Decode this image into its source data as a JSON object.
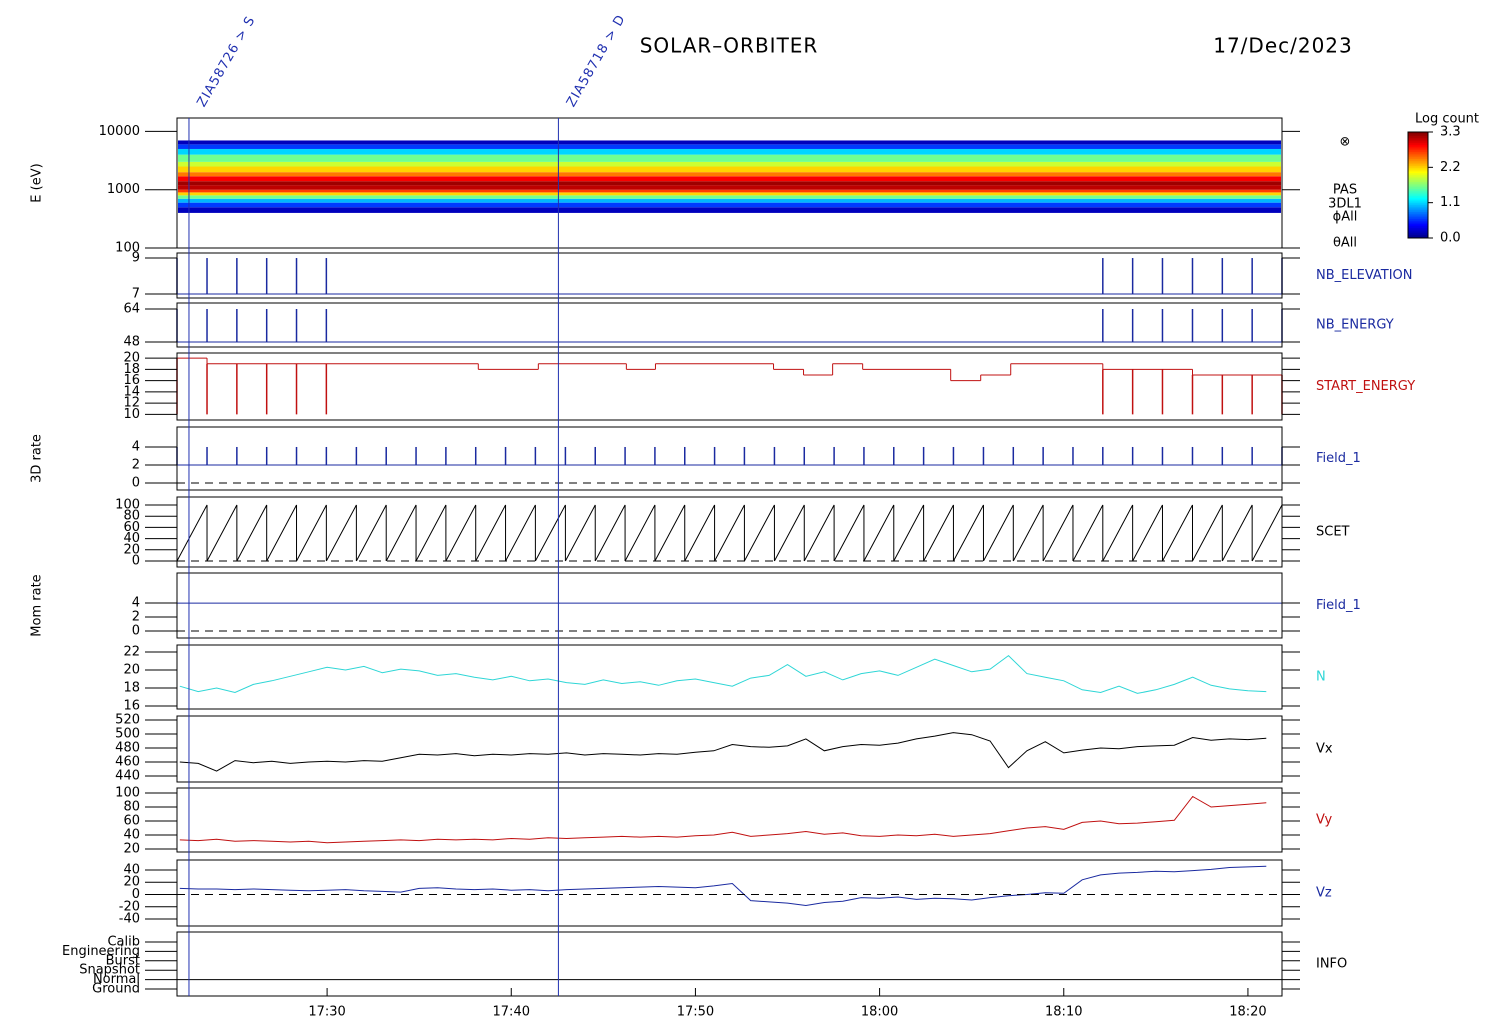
{
  "header": {
    "title": "SOLAR–ORBITER",
    "date": "17/Dec/2023"
  },
  "time_axis": {
    "xlim": [
      21.85,
      81.85
    ],
    "xticks": [
      {
        "value": 30,
        "label": "17:30"
      },
      {
        "value": 40,
        "label": "17:40"
      },
      {
        "value": 50,
        "label": "17:50"
      },
      {
        "value": 60,
        "label": "18:00"
      },
      {
        "value": 70,
        "label": "18:10"
      },
      {
        "value": 80,
        "label": "18:20"
      }
    ]
  },
  "markers": [
    {
      "x": 22.5,
      "label": "ZIA58726 > S",
      "color": "#2030b0"
    },
    {
      "x": 42.56,
      "label": "ZIA58718 > D",
      "color": "#2030b0"
    }
  ],
  "chart_data": [
    {
      "type": "spectrogram",
      "ylabel": "E (eV)",
      "log_scale": true,
      "ylim": [
        100,
        17000
      ],
      "yticks": [
        100,
        1000,
        10000
      ],
      "energy_edges": [
        400,
        500,
        600,
        700,
        800,
        900,
        1000,
        1200,
        1400,
        1700,
        2000,
        2500,
        3000,
        4000,
        5000,
        6000,
        7000
      ],
      "log_counts": [
        0.2,
        0.6,
        1.0,
        1.6,
        2.2,
        2.7,
        3.1,
        3.2,
        2.9,
        2.5,
        2.2,
        1.9,
        1.6,
        1.1,
        0.6,
        0.2
      ],
      "labels": [
        "⊗",
        "PAS",
        "3DL1",
        "ϕAll",
        "θAll"
      ],
      "colorbar": {
        "title": "Log count",
        "colormap": "jet",
        "clim": [
          0,
          3.3
        ],
        "ticks": [
          3.3,
          2.2,
          1.1,
          {
            "value": 0,
            "label": "0.0"
          }
        ]
      }
    },
    {
      "type": "spikes",
      "name": "NB_ELEVATION",
      "color": "#1a2aa0",
      "ylim": [
        6.78,
        9.28
      ],
      "yticks": [
        7,
        9
      ],
      "baseline": 7,
      "x": [
        21.85,
        23.48,
        25.1,
        26.72,
        28.34,
        29.96,
        72.12,
        73.74,
        75.36,
        76.99,
        78.61,
        80.23,
        81.85
      ],
      "values": [
        9,
        9,
        9,
        9,
        9,
        9,
        9,
        9,
        9,
        9,
        9,
        9,
        9
      ]
    },
    {
      "type": "spikes",
      "name": "NB_ENERGY",
      "color": "#1a2aa0",
      "ylim": [
        45.6,
        66.9
      ],
      "yticks": [
        48,
        64
      ],
      "baseline": 48,
      "x": [
        21.85,
        23.48,
        25.1,
        26.72,
        28.34,
        29.96,
        72.12,
        73.74,
        75.36,
        76.99,
        78.61,
        80.23,
        81.85
      ],
      "values": [
        64,
        64,
        64,
        64,
        64,
        64,
        64,
        64,
        64,
        64,
        64,
        64,
        64
      ]
    },
    {
      "type": "step",
      "name": "START_ENERGY",
      "color": "#c01010",
      "ylim": [
        9,
        20.9
      ],
      "yticks": [
        10,
        12,
        14,
        16,
        18,
        20
      ],
      "x": [
        21.85,
        23.48,
        38.21,
        41.47,
        46.25,
        47.83,
        54.24,
        55.87,
        57.45,
        59.08,
        63.86,
        65.49,
        67.12,
        72.12,
        76.99
      ],
      "values": [
        20,
        19,
        18,
        19,
        18,
        19,
        18,
        17,
        19,
        18,
        16,
        17,
        19,
        18,
        17
      ],
      "dips": {
        "x": [
          21.85,
          23.48,
          25.1,
          26.72,
          28.34,
          29.96,
          72.12,
          73.74,
          75.36,
          76.99,
          78.61,
          80.23,
          81.85
        ],
        "values": [
          10,
          10,
          10,
          10,
          10,
          10,
          10,
          10,
          10,
          10,
          10,
          10,
          10
        ]
      }
    },
    {
      "type": "spikes",
      "name": "Field_1",
      "ylabel": "3D rate",
      "color": "#1a2aa0",
      "ylim": [
        -0.78,
        6.22
      ],
      "yticks": [
        0,
        2,
        4
      ],
      "baseline": 2,
      "reference": 0,
      "x": [
        21.85,
        23.48,
        25.1,
        26.72,
        28.34,
        29.96,
        31.59,
        33.21,
        34.83,
        36.45,
        38.07,
        39.69,
        41.31,
        42.94,
        44.56,
        46.18,
        47.8,
        49.42,
        51.04,
        52.66,
        54.29,
        55.91,
        57.53,
        59.15,
        60.77,
        62.39,
        64.01,
        65.64,
        67.26,
        68.88,
        70.5,
        72.12,
        73.74,
        75.36,
        76.99,
        78.61,
        80.23,
        81.85
      ],
      "values": [
        4,
        4,
        4,
        4,
        4,
        4,
        4,
        4,
        4,
        4,
        4,
        4,
        4,
        4,
        4,
        4,
        4,
        4,
        4,
        4,
        4,
        4,
        4,
        4,
        4,
        4,
        4,
        4,
        4,
        4,
        4,
        4,
        4,
        4,
        4,
        4,
        4,
        4
      ]
    },
    {
      "type": "sawtooth",
      "name": "SCET",
      "color": "#000000",
      "ylim": [
        -10.7,
        114.3
      ],
      "yticks": [
        0,
        20,
        40,
        60,
        80,
        100
      ],
      "baseline": 0,
      "reference": 0,
      "x": [
        21.85,
        23.48,
        25.1,
        26.72,
        28.34,
        29.96,
        31.59,
        33.21,
        34.83,
        36.45,
        38.07,
        39.69,
        41.31,
        42.94,
        44.56,
        46.18,
        47.8,
        49.42,
        51.04,
        52.66,
        54.29,
        55.91,
        57.53,
        59.15,
        60.77,
        62.39,
        64.01,
        65.64,
        67.26,
        68.88,
        70.5,
        72.12,
        73.74,
        75.36,
        76.99,
        78.61,
        80.23
      ],
      "values": [
        100,
        100,
        100,
        100,
        100,
        100,
        100,
        100,
        100,
        100,
        100,
        100,
        100,
        100,
        100,
        100,
        100,
        100,
        100,
        100,
        100,
        100,
        100,
        100,
        100,
        100,
        100,
        100,
        100,
        100,
        100,
        100,
        100,
        100,
        100,
        100,
        100
      ]
    },
    {
      "type": "line",
      "name": "Field_1",
      "ylabel": "Mom rate",
      "color": "#1a2aa0",
      "ylim": [
        -1,
        8.3
      ],
      "yticks": [
        0,
        2,
        4
      ],
      "reference": 0,
      "x": [
        21.85,
        81.85
      ],
      "values": [
        4,
        4
      ]
    },
    {
      "type": "line",
      "name": "N",
      "color": "#2ed6d6",
      "ylim": [
        15.67,
        22.78
      ],
      "yticks": [
        16,
        18,
        20,
        22
      ],
      "x": [
        22,
        23,
        24,
        25,
        26,
        27,
        28,
        29,
        30,
        31,
        32,
        33,
        34,
        35,
        36,
        37,
        38,
        39,
        40,
        41,
        42,
        43,
        44,
        45,
        46,
        47,
        48,
        49,
        50,
        51,
        52,
        53,
        54,
        55,
        56,
        57,
        58,
        59,
        60,
        61,
        62,
        63,
        64,
        65,
        66,
        67,
        68,
        69,
        70,
        71,
        72,
        73,
        74,
        75,
        76,
        77,
        78,
        79,
        80,
        81
      ],
      "values": [
        18.2,
        17.6,
        18.0,
        17.5,
        18.4,
        18.8,
        19.3,
        19.8,
        20.3,
        20.0,
        20.4,
        19.7,
        20.1,
        19.9,
        19.4,
        19.6,
        19.2,
        18.9,
        19.3,
        18.8,
        19.0,
        18.6,
        18.4,
        18.9,
        18.5,
        18.7,
        18.3,
        18.8,
        19.0,
        18.6,
        18.2,
        19.1,
        19.4,
        20.6,
        19.3,
        19.8,
        18.9,
        19.6,
        19.9,
        19.4,
        20.3,
        21.2,
        20.5,
        19.8,
        20.1,
        21.6,
        19.6,
        19.2,
        18.8,
        17.8,
        17.5,
        18.2,
        17.4,
        17.8,
        18.4,
        19.2,
        18.3,
        17.9,
        17.7,
        17.6
      ]
    },
    {
      "type": "line",
      "name": "Vx",
      "color": "#000000",
      "ylim": [
        431.4,
        525.7
      ],
      "yticks": [
        440,
        460,
        480,
        500,
        520
      ],
      "x": [
        22,
        23,
        24,
        25,
        26,
        27,
        28,
        29,
        30,
        31,
        32,
        33,
        34,
        35,
        36,
        37,
        38,
        39,
        40,
        41,
        42,
        43,
        44,
        45,
        46,
        47,
        48,
        49,
        50,
        51,
        52,
        53,
        54,
        55,
        56,
        57,
        58,
        59,
        60,
        61,
        62,
        63,
        64,
        65,
        66,
        67,
        68,
        69,
        70,
        71,
        72,
        73,
        74,
        75,
        76,
        77,
        78,
        79,
        80,
        81
      ],
      "values": [
        460,
        458,
        447,
        462,
        459,
        461,
        458,
        460,
        461,
        460,
        462,
        461,
        466,
        471,
        470,
        472,
        469,
        471,
        470,
        472,
        471,
        473,
        470,
        472,
        471,
        470,
        472,
        471,
        474,
        476,
        485,
        482,
        481,
        483,
        493,
        476,
        482,
        485,
        484,
        487,
        493,
        497,
        502,
        499,
        490,
        452,
        476,
        489,
        473,
        477,
        480,
        479,
        482,
        483,
        484,
        495,
        491,
        493,
        492,
        494
      ]
    },
    {
      "type": "line",
      "name": "Vy",
      "color": "#c01010",
      "ylim": [
        15.7,
        107.1
      ],
      "yticks": [
        20,
        40,
        60,
        80,
        100
      ],
      "x": [
        22,
        23,
        24,
        25,
        26,
        27,
        28,
        29,
        30,
        31,
        32,
        33,
        34,
        35,
        36,
        37,
        38,
        39,
        40,
        41,
        42,
        43,
        44,
        45,
        46,
        47,
        48,
        49,
        50,
        51,
        52,
        53,
        54,
        55,
        56,
        57,
        58,
        59,
        60,
        61,
        62,
        63,
        64,
        65,
        66,
        67,
        68,
        69,
        70,
        71,
        72,
        73,
        74,
        75,
        76,
        77,
        78,
        79,
        80,
        81
      ],
      "values": [
        33,
        32,
        34,
        31,
        32,
        31,
        30,
        31,
        29,
        30,
        31,
        32,
        33,
        32,
        34,
        33,
        34,
        33,
        35,
        34,
        36,
        35,
        36,
        37,
        38,
        37,
        38,
        37,
        39,
        40,
        44,
        38,
        40,
        42,
        45,
        41,
        43,
        39,
        38,
        40,
        39,
        41,
        38,
        40,
        42,
        46,
        50,
        52,
        48,
        58,
        60,
        56,
        57,
        59,
        61,
        95,
        80,
        82,
        84,
        86
      ]
    },
    {
      "type": "line",
      "name": "Vz",
      "color": "#1a2aa0",
      "ylim": [
        -51.4,
        56.3
      ],
      "yticks": [
        -40,
        -20,
        0,
        20,
        40
      ],
      "reference": 0,
      "x": [
        22,
        23,
        24,
        25,
        26,
        27,
        28,
        29,
        30,
        31,
        32,
        33,
        34,
        35,
        36,
        37,
        38,
        39,
        40,
        41,
        42,
        43,
        44,
        45,
        46,
        47,
        48,
        49,
        50,
        51,
        52,
        53,
        54,
        55,
        56,
        57,
        58,
        59,
        60,
        61,
        62,
        63,
        64,
        65,
        66,
        67,
        68,
        69,
        70,
        71,
        72,
        73,
        74,
        75,
        76,
        77,
        78,
        79,
        80,
        81
      ],
      "values": [
        10,
        9,
        9,
        8,
        9,
        8,
        7,
        6,
        7,
        8,
        6,
        5,
        4,
        10,
        11,
        9,
        8,
        9,
        7,
        8,
        6,
        8,
        9,
        10,
        11,
        12,
        13,
        12,
        11,
        14,
        18,
        -10,
        -12,
        -14,
        -18,
        -13,
        -11,
        -5,
        -6,
        -4,
        -8,
        -6,
        -7,
        -9,
        -5,
        -2,
        0,
        3,
        2,
        24,
        32,
        35,
        36,
        38,
        37,
        39,
        41,
        44,
        45,
        46
      ]
    },
    {
      "type": "state",
      "name": "INFO",
      "color": "#000000",
      "categories": [
        "Calib",
        "Engineering",
        "Burst",
        "Snapshot",
        "Normal",
        "Ground"
      ],
      "x": [
        21.85,
        81.85
      ],
      "values": [
        "Normal",
        "Normal"
      ]
    }
  ]
}
